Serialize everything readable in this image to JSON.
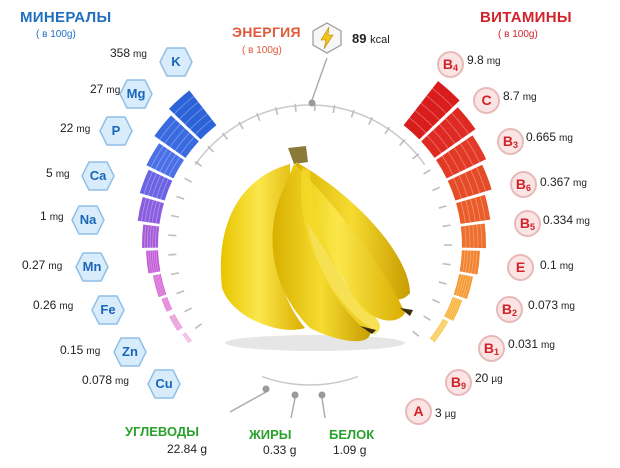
{
  "minerals": {
    "title": "МИНЕРАЛЫ",
    "subtitle": "( в 100g)",
    "color": "#1f6fc0",
    "items": [
      {
        "symbol": "K",
        "value": "358",
        "unit": "mg",
        "bar_color": "#2d63d8"
      },
      {
        "symbol": "Mg",
        "value": "27",
        "unit": "mg",
        "bar_color": "#3a6ae0"
      },
      {
        "symbol": "P",
        "value": "22",
        "unit": "mg",
        "bar_color": "#4b6fe6"
      },
      {
        "symbol": "Ca",
        "value": "5",
        "unit": "mg",
        "bar_color": "#6a63e4"
      },
      {
        "symbol": "Na",
        "value": "1",
        "unit": "mg",
        "bar_color": "#8a5de0"
      },
      {
        "symbol": "Mn",
        "value": "0.27",
        "unit": "mg",
        "bar_color": "#a45ad8"
      },
      {
        "symbol": "Fe",
        "value": "0.26",
        "unit": "mg",
        "bar_color": "#c05ad6"
      },
      {
        "symbol": "Zn",
        "value": "0.15",
        "unit": "mg",
        "bar_color": "#d45fd2"
      },
      {
        "symbol": "Cu",
        "value": "0.078",
        "unit": "mg",
        "bar_color": "#e06ad0"
      }
    ]
  },
  "energy": {
    "title": "ЭНЕРГИЯ",
    "subtitle": "( в 100g)",
    "value": "89",
    "unit": "kcal",
    "color": "#e05a3a"
  },
  "vitamins": {
    "title": "ВИТАМИНЫ",
    "subtitle": "( в 100g)",
    "color": "#d0232a",
    "items": [
      {
        "letter": "B",
        "sub": "4",
        "value": "9.8",
        "unit": "mg",
        "bar_color": "#d91d1d"
      },
      {
        "letter": "C",
        "sub": "",
        "value": "8.7",
        "unit": "mg",
        "bar_color": "#de2a22"
      },
      {
        "letter": "B",
        "sub": "3",
        "value": "0.665",
        "unit": "mg",
        "bar_color": "#e23a26"
      },
      {
        "letter": "B",
        "sub": "6",
        "value": "0.367",
        "unit": "mg",
        "bar_color": "#e64b28"
      },
      {
        "letter": "B",
        "sub": "5",
        "value": "0.334",
        "unit": "mg",
        "bar_color": "#ea5c2a"
      },
      {
        "letter": "E",
        "sub": "",
        "value": "0.1",
        "unit": "mg",
        "bar_color": "#ee6e2c"
      },
      {
        "letter": "B",
        "sub": "2",
        "value": "0.073",
        "unit": "mg",
        "bar_color": "#f2822e"
      },
      {
        "letter": "B",
        "sub": "1",
        "value": "0.031",
        "unit": "mg",
        "bar_color": "#f59830"
      },
      {
        "letter": "B",
        "sub": "9",
        "value": "20",
        "unit": "µg",
        "bar_color": "#f8b034"
      },
      {
        "letter": "A",
        "sub": "",
        "value": "3",
        "unit": "µg",
        "bar_color": "#f8c23a"
      }
    ]
  },
  "macros": [
    {
      "name": "УГЛЕВОДЫ",
      "value": "22.84",
      "unit": "g"
    },
    {
      "name": "ЖИРЫ",
      "value": "0.33",
      "unit": "g"
    },
    {
      "name": "БЕЛОК",
      "value": "1.09",
      "unit": "g"
    }
  ],
  "colors": {
    "macro_green": "#2aa12d",
    "hex_fill": "#d9ecfb",
    "hex_stroke": "#8fbfe6"
  },
  "icons": {
    "energy": "lightning-icon",
    "product": "banana-bunch-image"
  }
}
